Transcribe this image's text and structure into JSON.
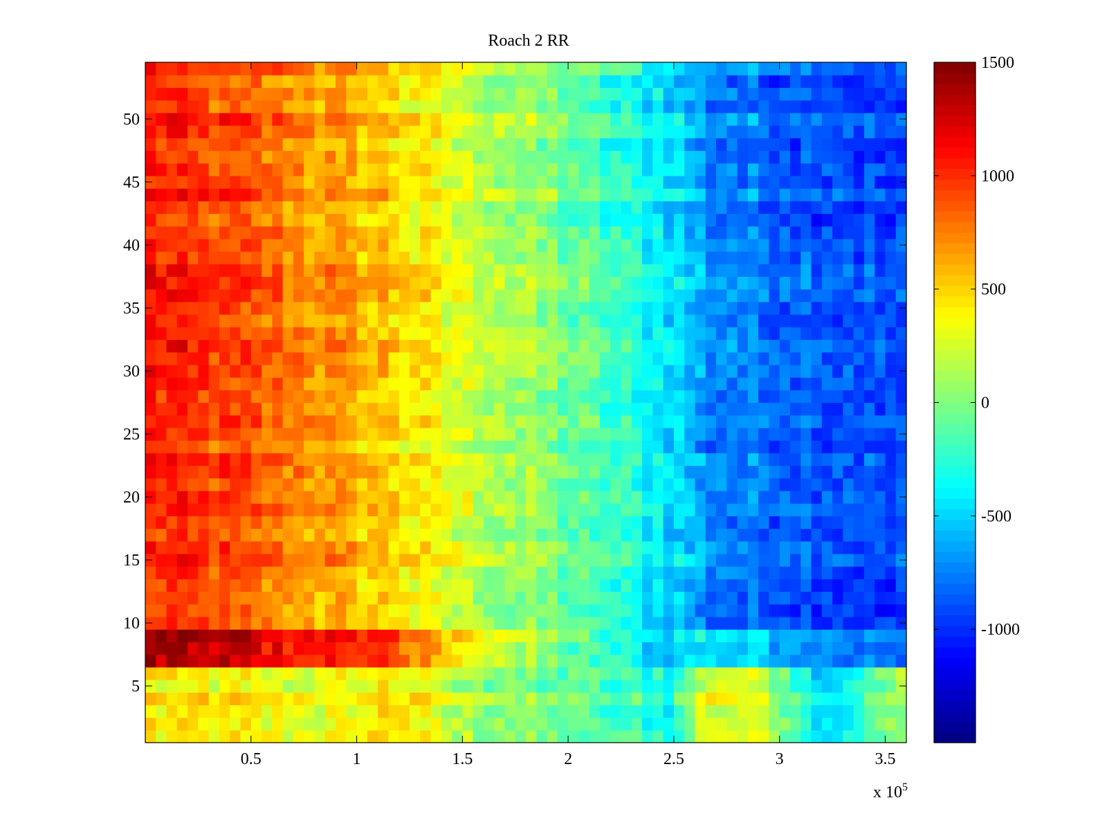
{
  "chart_data": {
    "type": "heatmap",
    "title": "Roach 2 RR",
    "xlabel": "",
    "ylabel": "",
    "x_exponent_label": "x 10",
    "x_exponent_power": "5",
    "xlim": [
      0,
      3.6
    ],
    "ylim": [
      0.5,
      54.5
    ],
    "x_ticks": [
      0.5,
      1,
      1.5,
      2,
      2.5,
      3,
      3.5
    ],
    "x_tick_labels": [
      "0.5",
      "1",
      "1.5",
      "2",
      "2.5",
      "3",
      "3.5"
    ],
    "y_ticks": [
      5,
      10,
      15,
      20,
      25,
      30,
      35,
      40,
      45,
      50
    ],
    "y_tick_labels": [
      "5",
      "10",
      "15",
      "20",
      "25",
      "30",
      "35",
      "40",
      "45",
      "50"
    ],
    "colorbar": {
      "colormap": "jet",
      "clim": [
        -1500,
        1500
      ],
      "ticks": [
        1500,
        1000,
        500,
        0,
        -500,
        -1000
      ],
      "tick_labels": [
        "1500",
        "1000",
        "500",
        "0",
        "-500",
        "-1000"
      ]
    },
    "grid": false,
    "rows": 54,
    "column_groups": 72,
    "row_gradient_profiles": {
      "x_knots": [
        0,
        0.5,
        1.0,
        1.15,
        1.5,
        2.0,
        2.5,
        2.65,
        2.95,
        3.2,
        3.6
      ],
      "center_rows_10_to_54": [
        1050,
        850,
        600,
        520,
        250,
        -50,
        -450,
        -700,
        -800,
        -850,
        -950
      ],
      "bright_rows_7_to_9": [
        1400,
        1200,
        1000,
        950,
        400,
        -100,
        -500,
        -400,
        -500,
        -700,
        -800
      ],
      "edge_rows_1_to_6": [
        400,
        350,
        300,
        500,
        100,
        -100,
        -300,
        300,
        200,
        -500,
        100
      ]
    }
  }
}
